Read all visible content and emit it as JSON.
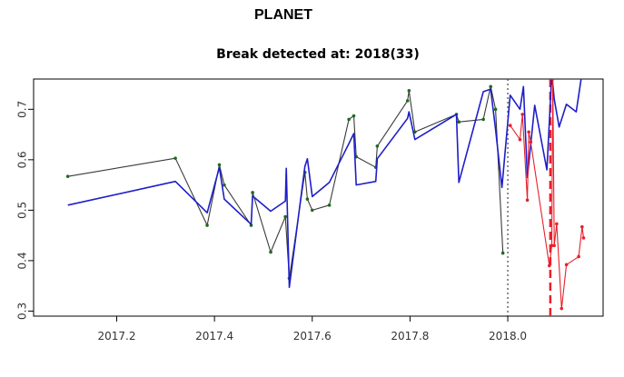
{
  "figure": {
    "title": "PLANET"
  },
  "chart_data": {
    "type": "line",
    "title": "Break detected at: 2018(33)",
    "xlabel": "",
    "ylabel": "",
    "xlim": [
      2017.03,
      2018.195
    ],
    "ylim": [
      0.29,
      0.76
    ],
    "x_ticks": [
      2017.2,
      2017.4,
      2017.6,
      2017.8,
      2018.0
    ],
    "x_tick_labels": [
      "2017.2",
      "2017.4",
      "2017.6",
      "2017.8",
      "2018.0"
    ],
    "y_ticks": [
      0.3,
      0.4,
      0.5,
      0.6,
      0.7
    ],
    "y_tick_labels": [
      "0.3",
      "0.4",
      "0.5",
      "0.6",
      "0.7"
    ],
    "grid": false,
    "vertical_lines": [
      {
        "x": 2018.0,
        "style": "dotted",
        "color": "#444444"
      },
      {
        "x": 2018.087,
        "style": "dashed",
        "color": "#e8202a"
      }
    ],
    "series": [
      {
        "color": "#3a3a3a",
        "marker_color": "#1f6b1f",
        "markers": true,
        "x": [
          2017.1,
          2017.32,
          2017.385,
          2017.41,
          2017.42,
          2017.475,
          2017.478,
          2017.515,
          2017.545,
          2017.553,
          2017.585,
          2017.59,
          2017.6,
          2017.635,
          2017.675,
          2017.685,
          2017.69,
          2017.73,
          2017.733,
          2017.795,
          2017.798,
          2017.81,
          2017.895,
          2017.9,
          2017.95,
          2017.965,
          2017.975,
          2017.99
        ],
        "y": [
          0.567,
          0.603,
          0.47,
          0.59,
          0.55,
          0.47,
          0.535,
          0.417,
          0.487,
          0.365,
          0.575,
          0.522,
          0.5,
          0.51,
          0.68,
          0.687,
          0.606,
          0.585,
          0.627,
          0.717,
          0.737,
          0.655,
          0.69,
          0.675,
          0.68,
          0.745,
          0.7,
          0.415
        ]
      },
      {
        "color": "#1e1ec8",
        "markers": false,
        "x": [
          2017.1,
          2017.32,
          2017.385,
          2017.41,
          2017.42,
          2017.475,
          2017.478,
          2017.515,
          2017.545,
          2017.547,
          2017.553,
          2017.585,
          2017.59,
          2017.6,
          2017.635,
          2017.675,
          2017.685,
          2017.69,
          2017.73,
          2017.733,
          2017.795,
          2017.798,
          2017.81,
          2017.895,
          2017.9,
          2017.95,
          2017.965,
          2017.975,
          2017.988,
          2018.005,
          2018.025,
          2018.032,
          2018.04,
          2018.055,
          2018.08,
          2018.09,
          2018.095,
          2018.105,
          2018.12,
          2018.14,
          2018.15
        ],
        "y": [
          0.51,
          0.557,
          0.495,
          0.585,
          0.522,
          0.472,
          0.528,
          0.498,
          0.518,
          0.583,
          0.347,
          0.587,
          0.602,
          0.527,
          0.555,
          0.632,
          0.652,
          0.55,
          0.557,
          0.602,
          0.682,
          0.695,
          0.64,
          0.69,
          0.555,
          0.735,
          0.74,
          0.66,
          0.545,
          0.728,
          0.7,
          0.745,
          0.565,
          0.708,
          0.58,
          0.77,
          0.72,
          0.665,
          0.71,
          0.695,
          0.76
        ]
      },
      {
        "color": "#e8202a",
        "marker_color": "#e8202a",
        "markers": true,
        "x": [
          2018.005,
          2018.025,
          2018.03,
          2018.04,
          2018.043,
          2018.047,
          2018.085,
          2018.09,
          2018.092,
          2018.095,
          2018.1,
          2018.11,
          2018.12,
          2018.145,
          2018.152,
          2018.155
        ],
        "y": [
          0.668,
          0.64,
          0.69,
          0.52,
          0.655,
          0.635,
          0.39,
          0.43,
          0.76,
          0.43,
          0.473,
          0.305,
          0.392,
          0.408,
          0.467,
          0.445
        ]
      }
    ]
  }
}
